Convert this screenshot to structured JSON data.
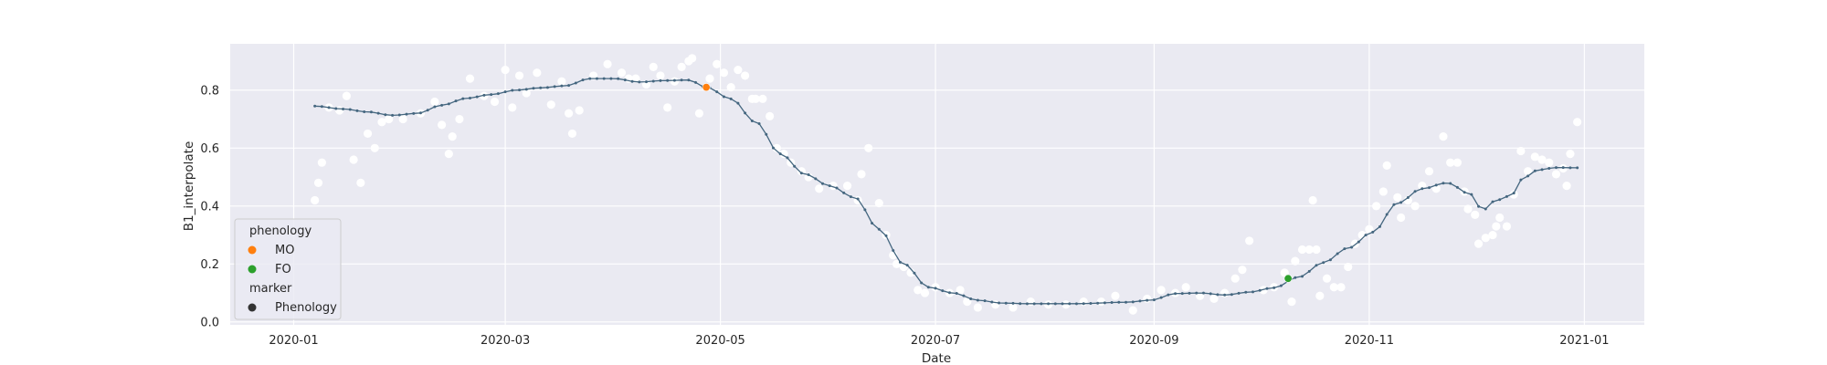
{
  "chart_data": {
    "type": "scatter",
    "xlabel": "Date",
    "ylabel": "B1_interpolate",
    "xlim": [
      "2019-12-14",
      "2021-01-18"
    ],
    "ylim": [
      -0.01,
      0.96
    ],
    "grid": true,
    "x_ticks": [
      "2020-01",
      "2020-03",
      "2020-05",
      "2020-07",
      "2020-09",
      "2020-11",
      "2021-01"
    ],
    "y_ticks": [
      "0.0",
      "0.2",
      "0.4",
      "0.6",
      "0.8"
    ],
    "colors": {
      "background": "#eaeaf2",
      "grid": "#ffffff",
      "observed": "#ffffff",
      "smoothed": "#44667f",
      "MO": "#ff7f0e",
      "FO": "#2ca02c",
      "marker_legend": "#333333"
    },
    "legend": {
      "placement": "lower-left",
      "hue_title": "phenology",
      "style_title": "marker",
      "entries": [
        {
          "label": "MO",
          "color": "#ff7f0e"
        },
        {
          "label": "FO",
          "color": "#2ca02c"
        },
        {
          "label": "Phenology",
          "color": "#333333"
        }
      ]
    },
    "phenology_points": [
      {
        "label": "MO",
        "date": "2020-04-27",
        "value": 0.81
      },
      {
        "label": "FO",
        "date": "2020-10-09",
        "value": 0.15
      }
    ],
    "smoothed_series": {
      "start": "2020-01-07",
      "end": "2020-12-30",
      "step_days": 2,
      "knots": [
        [
          "2020-01-07",
          0.745
        ],
        [
          "2020-01-15",
          0.735
        ],
        [
          "2020-01-22",
          0.725
        ],
        [
          "2020-01-29",
          0.713
        ],
        [
          "2020-02-05",
          0.72
        ],
        [
          "2020-02-12",
          0.748
        ],
        [
          "2020-02-19",
          0.772
        ],
        [
          "2020-02-26",
          0.785
        ],
        [
          "2020-03-04",
          0.8
        ],
        [
          "2020-03-11",
          0.808
        ],
        [
          "2020-03-18",
          0.815
        ],
        [
          "2020-03-25",
          0.84
        ],
        [
          "2020-04-01",
          0.84
        ],
        [
          "2020-04-08",
          0.828
        ],
        [
          "2020-04-15",
          0.833
        ],
        [
          "2020-04-22",
          0.835
        ],
        [
          "2020-04-27",
          0.81
        ],
        [
          "2020-05-04",
          0.77
        ],
        [
          "2020-05-11",
          0.69
        ],
        [
          "2020-05-18",
          0.58
        ],
        [
          "2020-05-25",
          0.51
        ],
        [
          "2020-06-01",
          0.47
        ],
        [
          "2020-06-08",
          0.43
        ],
        [
          "2020-06-15",
          0.32
        ],
        [
          "2020-06-22",
          0.2
        ],
        [
          "2020-06-29",
          0.12
        ],
        [
          "2020-07-06",
          0.1
        ],
        [
          "2020-07-13",
          0.075
        ],
        [
          "2020-07-20",
          0.065
        ],
        [
          "2020-07-27",
          0.063
        ],
        [
          "2020-08-10",
          0.063
        ],
        [
          "2020-08-24",
          0.068
        ],
        [
          "2020-08-31",
          0.075
        ],
        [
          "2020-09-07",
          0.098
        ],
        [
          "2020-09-14",
          0.1
        ],
        [
          "2020-09-21",
          0.093
        ],
        [
          "2020-09-28",
          0.103
        ],
        [
          "2020-10-05",
          0.118
        ],
        [
          "2020-10-12",
          0.155
        ],
        [
          "2020-10-19",
          0.205
        ],
        [
          "2020-10-26",
          0.255
        ],
        [
          "2020-11-02",
          0.31
        ],
        [
          "2020-11-09",
          0.41
        ],
        [
          "2020-11-16",
          0.46
        ],
        [
          "2020-11-23",
          0.48
        ],
        [
          "2020-11-30",
          0.44
        ],
        [
          "2020-12-03",
          0.385
        ],
        [
          "2020-12-07",
          0.42
        ],
        [
          "2020-12-11",
          0.435
        ],
        [
          "2020-12-15",
          0.5
        ],
        [
          "2020-12-19",
          0.525
        ],
        [
          "2020-12-24",
          0.533
        ],
        [
          "2020-12-30",
          0.532
        ]
      ]
    },
    "observations": [
      [
        "2020-01-07",
        0.42
      ],
      [
        "2020-01-08",
        0.48
      ],
      [
        "2020-01-09",
        0.55
      ],
      [
        "2020-01-11",
        0.74
      ],
      [
        "2020-01-14",
        0.73
      ],
      [
        "2020-01-16",
        0.78
      ],
      [
        "2020-01-18",
        0.56
      ],
      [
        "2020-01-20",
        0.48
      ],
      [
        "2020-01-22",
        0.65
      ],
      [
        "2020-01-24",
        0.6
      ],
      [
        "2020-01-26",
        0.69
      ],
      [
        "2020-01-28",
        0.7
      ],
      [
        "2020-02-01",
        0.7
      ],
      [
        "2020-02-06",
        0.72
      ],
      [
        "2020-02-10",
        0.76
      ],
      [
        "2020-02-12",
        0.68
      ],
      [
        "2020-02-14",
        0.58
      ],
      [
        "2020-02-15",
        0.64
      ],
      [
        "2020-02-17",
        0.7
      ],
      [
        "2020-02-20",
        0.84
      ],
      [
        "2020-02-24",
        0.78
      ],
      [
        "2020-02-27",
        0.76
      ],
      [
        "2020-03-01",
        0.87
      ],
      [
        "2020-03-03",
        0.74
      ],
      [
        "2020-03-05",
        0.85
      ],
      [
        "2020-03-07",
        0.79
      ],
      [
        "2020-03-10",
        0.86
      ],
      [
        "2020-03-14",
        0.75
      ],
      [
        "2020-03-17",
        0.83
      ],
      [
        "2020-03-19",
        0.72
      ],
      [
        "2020-03-20",
        0.65
      ],
      [
        "2020-03-22",
        0.73
      ],
      [
        "2020-03-26",
        0.85
      ],
      [
        "2020-03-30",
        0.89
      ],
      [
        "2020-04-03",
        0.86
      ],
      [
        "2020-04-05",
        0.84
      ],
      [
        "2020-04-07",
        0.84
      ],
      [
        "2020-04-10",
        0.82
      ],
      [
        "2020-04-12",
        0.88
      ],
      [
        "2020-04-14",
        0.85
      ],
      [
        "2020-04-16",
        0.74
      ],
      [
        "2020-04-18",
        0.83
      ],
      [
        "2020-04-20",
        0.88
      ],
      [
        "2020-04-22",
        0.9
      ],
      [
        "2020-04-23",
        0.91
      ],
      [
        "2020-04-25",
        0.72
      ],
      [
        "2020-04-28",
        0.84
      ],
      [
        "2020-04-30",
        0.89
      ],
      [
        "2020-05-02",
        0.86
      ],
      [
        "2020-05-04",
        0.81
      ],
      [
        "2020-05-06",
        0.87
      ],
      [
        "2020-05-08",
        0.85
      ],
      [
        "2020-05-10",
        0.77
      ],
      [
        "2020-05-11",
        0.77
      ],
      [
        "2020-05-13",
        0.77
      ],
      [
        "2020-05-15",
        0.71
      ],
      [
        "2020-05-17",
        0.6
      ],
      [
        "2020-05-19",
        0.58
      ],
      [
        "2020-05-21",
        0.55
      ],
      [
        "2020-05-24",
        0.52
      ],
      [
        "2020-05-26",
        0.5
      ],
      [
        "2020-05-29",
        0.46
      ],
      [
        "2020-06-02",
        0.47
      ],
      [
        "2020-06-06",
        0.47
      ],
      [
        "2020-06-09",
        0.42
      ],
      [
        "2020-06-10",
        0.51
      ],
      [
        "2020-06-12",
        0.6
      ],
      [
        "2020-06-15",
        0.41
      ],
      [
        "2020-06-17",
        0.3
      ],
      [
        "2020-06-19",
        0.23
      ],
      [
        "2020-06-20",
        0.2
      ],
      [
        "2020-06-22",
        0.19
      ],
      [
        "2020-06-24",
        0.17
      ],
      [
        "2020-06-26",
        0.11
      ],
      [
        "2020-06-28",
        0.1
      ],
      [
        "2020-07-01",
        0.12
      ],
      [
        "2020-07-05",
        0.1
      ],
      [
        "2020-07-08",
        0.11
      ],
      [
        "2020-07-10",
        0.07
      ],
      [
        "2020-07-13",
        0.05
      ],
      [
        "2020-07-18",
        0.06
      ],
      [
        "2020-07-23",
        0.05
      ],
      [
        "2020-07-28",
        0.07
      ],
      [
        "2020-08-02",
        0.06
      ],
      [
        "2020-08-07",
        0.06
      ],
      [
        "2020-08-12",
        0.07
      ],
      [
        "2020-08-17",
        0.07
      ],
      [
        "2020-08-21",
        0.09
      ],
      [
        "2020-08-26",
        0.04
      ],
      [
        "2020-08-30",
        0.08
      ],
      [
        "2020-09-03",
        0.11
      ],
      [
        "2020-09-07",
        0.1
      ],
      [
        "2020-09-10",
        0.12
      ],
      [
        "2020-09-14",
        0.09
      ],
      [
        "2020-09-18",
        0.08
      ],
      [
        "2020-09-21",
        0.1
      ],
      [
        "2020-09-24",
        0.15
      ],
      [
        "2020-09-26",
        0.18
      ],
      [
        "2020-09-28",
        0.28
      ],
      [
        "2020-10-02",
        0.11
      ],
      [
        "2020-10-05",
        0.12
      ],
      [
        "2020-10-08",
        0.17
      ],
      [
        "2020-10-10",
        0.07
      ],
      [
        "2020-10-11",
        0.21
      ],
      [
        "2020-10-13",
        0.25
      ],
      [
        "2020-10-15",
        0.25
      ],
      [
        "2020-10-16",
        0.42
      ],
      [
        "2020-10-17",
        0.25
      ],
      [
        "2020-10-18",
        0.09
      ],
      [
        "2020-10-20",
        0.15
      ],
      [
        "2020-10-22",
        0.12
      ],
      [
        "2020-10-24",
        0.12
      ],
      [
        "2020-10-26",
        0.19
      ],
      [
        "2020-10-28",
        0.27
      ],
      [
        "2020-10-30",
        0.3
      ],
      [
        "2020-11-01",
        0.32
      ],
      [
        "2020-11-03",
        0.4
      ],
      [
        "2020-11-05",
        0.45
      ],
      [
        "2020-11-06",
        0.54
      ],
      [
        "2020-11-09",
        0.43
      ],
      [
        "2020-11-10",
        0.36
      ],
      [
        "2020-11-12",
        0.42
      ],
      [
        "2020-11-14",
        0.4
      ],
      [
        "2020-11-16",
        0.47
      ],
      [
        "2020-11-18",
        0.52
      ],
      [
        "2020-11-20",
        0.46
      ],
      [
        "2020-11-22",
        0.64
      ],
      [
        "2020-11-24",
        0.55
      ],
      [
        "2020-11-26",
        0.55
      ],
      [
        "2020-11-28",
        0.45
      ],
      [
        "2020-11-29",
        0.39
      ],
      [
        "2020-12-01",
        0.37
      ],
      [
        "2020-12-02",
        0.27
      ],
      [
        "2020-12-04",
        0.29
      ],
      [
        "2020-12-06",
        0.3
      ],
      [
        "2020-12-07",
        0.33
      ],
      [
        "2020-12-08",
        0.36
      ],
      [
        "2020-12-10",
        0.33
      ],
      [
        "2020-12-12",
        0.44
      ],
      [
        "2020-12-14",
        0.59
      ],
      [
        "2020-12-16",
        0.52
      ],
      [
        "2020-12-18",
        0.57
      ],
      [
        "2020-12-20",
        0.56
      ],
      [
        "2020-12-22",
        0.55
      ],
      [
        "2020-12-24",
        0.51
      ],
      [
        "2020-12-26",
        0.53
      ],
      [
        "2020-12-27",
        0.47
      ],
      [
        "2020-12-28",
        0.58
      ],
      [
        "2020-12-30",
        0.69
      ]
    ]
  }
}
